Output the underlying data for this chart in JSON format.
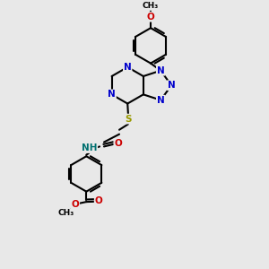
{
  "bg_color": "#e8e8e8",
  "bond_color": "#000000",
  "N_color": "#0000cc",
  "O_color": "#cc0000",
  "S_color": "#999900",
  "H_color": "#007070",
  "lw": 1.5,
  "fs": 7.5,
  "fs_small": 6.5,
  "xlim": [
    0,
    6
  ],
  "ylim": [
    0,
    9
  ]
}
